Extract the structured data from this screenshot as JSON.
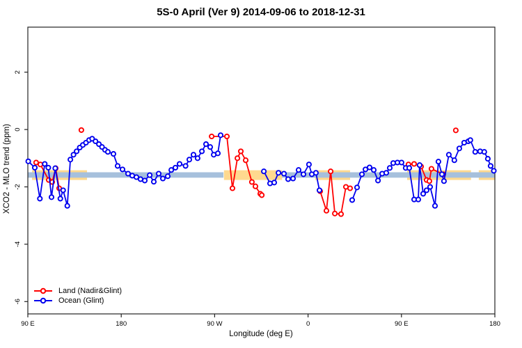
{
  "title": "5S-0 April (Ver 9)   2014-09-06 to 2018-12-31",
  "chart_data": {
    "type": "line",
    "title": "5S-0 April (Ver 9)   2014-09-06 to 2018-12-31",
    "xlabel": "Longitude (deg E)",
    "ylabel": "XCO2 - MLO trend (ppm)",
    "grid": false,
    "x_axis": {
      "min": 90,
      "max": 540,
      "ticks": [
        {
          "value": 90,
          "label": "90 E"
        },
        {
          "value": 180,
          "label": "180"
        },
        {
          "value": 270,
          "label": "90 W"
        },
        {
          "value": 360,
          "label": "0"
        },
        {
          "value": 450,
          "label": "90 E"
        },
        {
          "value": 540,
          "label": "180"
        }
      ]
    },
    "y_axis": {
      "min": -6.43,
      "max": 3.57,
      "ticks": [
        {
          "value": 2,
          "label": "2"
        },
        {
          "value": 0,
          "label": "0"
        },
        {
          "value": -2,
          "label": "-2"
        },
        {
          "value": -4,
          "label": "-4"
        },
        {
          "value": -6,
          "label": "-6"
        }
      ]
    },
    "bands": {
      "land": {
        "color": "#FFD98F",
        "value_range": [
          -1.42,
          -1.76
        ],
        "segments": [
          [
            94,
            147
          ],
          [
            279,
            335
          ],
          [
            367,
            400.5
          ],
          [
            455.5,
            517
          ],
          [
            524.5,
            540
          ]
        ]
      },
      "ocean": {
        "color": "#A6C0DC",
        "value_range": [
          -1.49,
          -1.68
        ],
        "segments": [
          [
            90,
            278.5
          ],
          [
            334.8,
            540
          ]
        ]
      }
    },
    "series": [
      {
        "name": "Land (Nadir&Glint)",
        "color": "#FF0000",
        "segments": [
          [
            [
              98,
              -1.15
            ],
            [
              102.1,
              -1.22
            ],
            [
              110.1,
              -1.76
            ],
            [
              113.5,
              -1.83
            ],
            [
              116.8,
              -1.35
            ],
            [
              120.2,
              -2.05
            ]
          ],
          [
            [
              141.6,
              -0.02
            ]
          ],
          [
            [
              267.1,
              -0.24
            ],
            [
              281.8,
              -0.24
            ],
            [
              287.2,
              -2.05
            ],
            [
              291.9,
              -1.0
            ],
            [
              295.2,
              -0.76
            ],
            [
              299.9,
              -1.07
            ],
            [
              305.9,
              -1.83
            ],
            [
              309.3,
              -1.98
            ],
            [
              314,
              -2.24
            ],
            [
              315.4,
              -2.29
            ]
          ],
          [
            [
              371.7,
              -2.15
            ],
            [
              377.7,
              -2.83
            ],
            [
              381.8,
              -1.46
            ],
            [
              385.8,
              -2.93
            ],
            [
              391.8,
              -2.95
            ],
            [
              396.5,
              -2.0
            ],
            [
              400.5,
              -2.05
            ]
          ],
          [
            [
              456.8,
              -1.22
            ],
            [
              462.2,
              -1.2
            ],
            [
              468.9,
              -1.29
            ],
            [
              474.2,
              -1.76
            ],
            [
              476.9,
              -1.8
            ],
            [
              478.9,
              -1.37
            ],
            [
              490.3,
              -1.56
            ]
          ],
          [
            [
              502.4,
              -0.03
            ]
          ]
        ]
      },
      {
        "name": "Ocean (Glint)",
        "color": "#0000EE",
        "segments": [
          [
            [
              90.4,
              -1.11
            ],
            [
              96.7,
              -1.33
            ],
            [
              101.6,
              -2.41
            ],
            [
              106.3,
              -1.2
            ],
            [
              109.7,
              -1.33
            ],
            [
              112.8,
              -2.36
            ],
            [
              116.4,
              -1.35
            ],
            [
              121.3,
              -2.41
            ],
            [
              124,
              -2.12
            ],
            [
              128,
              -2.66
            ],
            [
              131,
              -1.05
            ],
            [
              134,
              -0.88
            ],
            [
              137,
              -0.76
            ],
            [
              140,
              -0.63
            ],
            [
              143,
              -0.54
            ],
            [
              146,
              -0.46
            ],
            [
              149,
              -0.37
            ],
            [
              152,
              -0.32
            ],
            [
              155.2,
              -0.41
            ],
            [
              158.5,
              -0.51
            ],
            [
              161.5,
              -0.61
            ],
            [
              164.4,
              -0.71
            ],
            [
              167.1,
              -0.78
            ],
            [
              172.5,
              -0.85
            ],
            [
              176.5,
              -1.27
            ],
            [
              181.2,
              -1.39
            ],
            [
              186.6,
              -1.54
            ],
            [
              190.6,
              -1.61
            ],
            [
              194.6,
              -1.66
            ],
            [
              198.6,
              -1.73
            ],
            [
              202.7,
              -1.78
            ],
            [
              207.4,
              -1.59
            ],
            [
              211.4,
              -1.82
            ],
            [
              216.1,
              -1.54
            ],
            [
              220.1,
              -1.71
            ],
            [
              224.8,
              -1.63
            ],
            [
              228.2,
              -1.41
            ],
            [
              232.2,
              -1.33
            ],
            [
              236.2,
              -1.2
            ],
            [
              242,
              -1.27
            ],
            [
              245.6,
              -1.05
            ],
            [
              249.6,
              -0.88
            ],
            [
              253.6,
              -1.0
            ],
            [
              257.7,
              -0.76
            ],
            [
              261.7,
              -0.51
            ],
            [
              265.7,
              -0.61
            ],
            [
              269.1,
              -0.88
            ],
            [
              273.1,
              -0.83
            ],
            [
              275.8,
              -0.2
            ]
          ],
          [
            [
              317.4,
              -1.46
            ],
            [
              323.4,
              -1.88
            ],
            [
              327.4,
              -1.85
            ],
            [
              331.5,
              -1.51
            ],
            [
              336.8,
              -1.54
            ],
            [
              340.8,
              -1.73
            ],
            [
              345.5,
              -1.71
            ],
            [
              350.9,
              -1.41
            ],
            [
              355.6,
              -1.56
            ],
            [
              360.9,
              -1.22
            ],
            [
              363.6,
              -1.56
            ],
            [
              367.6,
              -1.51
            ],
            [
              371,
              -2.12
            ]
          ],
          [
            [
              402.5,
              -2.46
            ],
            [
              407.2,
              -2.02
            ],
            [
              411.9,
              -1.56
            ],
            [
              415.3,
              -1.39
            ],
            [
              419.3,
              -1.32
            ],
            [
              423.3,
              -1.41
            ],
            [
              427.4,
              -1.78
            ],
            [
              431.4,
              -1.54
            ],
            [
              435.4,
              -1.51
            ],
            [
              438.7,
              -1.34
            ],
            [
              442.1,
              -1.17
            ],
            [
              446.1,
              -1.15
            ],
            [
              450.1,
              -1.15
            ],
            [
              454.1,
              -1.34
            ],
            [
              457.5,
              -1.34
            ],
            [
              462.2,
              -2.44
            ],
            [
              466.2,
              -2.44
            ],
            [
              467.5,
              -1.24
            ],
            [
              470.9,
              -2.24
            ],
            [
              474.2,
              -2.12
            ],
            [
              477.6,
              -2.0
            ],
            [
              482.3,
              -2.66
            ],
            [
              485.6,
              -1.12
            ],
            [
              489,
              -1.56
            ],
            [
              491,
              -1.8
            ],
            [
              495.7,
              -0.88
            ],
            [
              501,
              -1.07
            ],
            [
              505.7,
              -0.66
            ],
            [
              510.4,
              -0.46
            ],
            [
              514.4,
              -0.41
            ],
            [
              516.4,
              -0.37
            ],
            [
              521.1,
              -0.78
            ],
            [
              525.8,
              -0.76
            ],
            [
              529.8,
              -0.78
            ],
            [
              533.2,
              -1.02
            ],
            [
              535.9,
              -1.27
            ],
            [
              539,
              -1.44
            ]
          ]
        ]
      }
    ],
    "legend": {
      "position": "bottom-left",
      "entries": [
        "Land (Nadir&Glint)",
        "Ocean (Glint)"
      ]
    }
  },
  "colors": {
    "axis": "#222222",
    "marker_fill": "#FFFFFF"
  }
}
